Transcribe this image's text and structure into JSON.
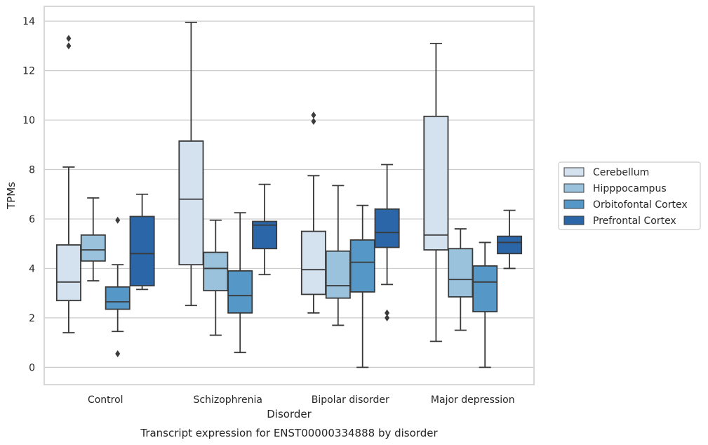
{
  "caption": "Transcript expression for ENST00000334888 by disorder",
  "chart_data": {
    "type": "boxplot",
    "xlabel": "Disorder",
    "ylabel": "TPMs",
    "ylim": [
      -0.7,
      14.6
    ],
    "yticks": [
      0,
      2,
      4,
      6,
      8,
      10,
      12,
      14
    ],
    "grid": "horizontal",
    "legend_position": "right",
    "categories": [
      "Control",
      "Schizophrenia",
      "Bipolar disorder",
      "Major depression"
    ],
    "series": [
      {
        "name": "Cerebellum",
        "color": "#d4e2f0",
        "boxes": [
          {
            "whisker_low": 1.4,
            "q1": 2.7,
            "median": 3.45,
            "q3": 4.95,
            "whisker_high": 8.1,
            "outliers": [
              13.0,
              13.3
            ]
          },
          {
            "whisker_low": 2.5,
            "q1": 4.15,
            "median": 6.8,
            "q3": 9.15,
            "whisker_high": 13.95,
            "outliers": []
          },
          {
            "whisker_low": 2.2,
            "q1": 2.95,
            "median": 3.95,
            "q3": 5.5,
            "whisker_high": 7.75,
            "outliers": [
              9.95,
              10.2
            ]
          },
          {
            "whisker_low": 1.05,
            "q1": 4.75,
            "median": 5.35,
            "q3": 10.15,
            "whisker_high": 13.1,
            "outliers": []
          }
        ]
      },
      {
        "name": "Hipppocampus",
        "color": "#9ac2dc",
        "boxes": [
          {
            "whisker_low": 3.5,
            "q1": 4.3,
            "median": 4.75,
            "q3": 5.35,
            "whisker_high": 6.85,
            "outliers": []
          },
          {
            "whisker_low": 1.3,
            "q1": 3.1,
            "median": 4.0,
            "q3": 4.65,
            "whisker_high": 5.95,
            "outliers": []
          },
          {
            "whisker_low": 1.7,
            "q1": 2.8,
            "median": 3.3,
            "q3": 4.7,
            "whisker_high": 7.35,
            "outliers": []
          },
          {
            "whisker_low": 1.5,
            "q1": 2.85,
            "median": 3.55,
            "q3": 4.8,
            "whisker_high": 5.6,
            "outliers": []
          }
        ]
      },
      {
        "name": "Orbitofontal Cortex",
        "color": "#5597c6",
        "boxes": [
          {
            "whisker_low": 1.45,
            "q1": 2.35,
            "median": 2.65,
            "q3": 3.25,
            "whisker_high": 4.15,
            "outliers": [
              0.55,
              5.95
            ]
          },
          {
            "whisker_low": 0.6,
            "q1": 2.2,
            "median": 2.9,
            "q3": 3.9,
            "whisker_high": 6.25,
            "outliers": []
          },
          {
            "whisker_low": 0.0,
            "q1": 3.05,
            "median": 4.25,
            "q3": 5.15,
            "whisker_high": 6.55,
            "outliers": []
          },
          {
            "whisker_low": 0.0,
            "q1": 2.25,
            "median": 3.45,
            "q3": 4.1,
            "whisker_high": 5.05,
            "outliers": []
          }
        ]
      },
      {
        "name": "Prefrontal Cortex",
        "color": "#2a66a8",
        "boxes": [
          {
            "whisker_low": 3.15,
            "q1": 3.3,
            "median": 4.6,
            "q3": 6.1,
            "whisker_high": 7.0,
            "outliers": []
          },
          {
            "whisker_low": 3.75,
            "q1": 4.8,
            "median": 5.75,
            "q3": 5.9,
            "whisker_high": 7.4,
            "outliers": []
          },
          {
            "whisker_low": 3.35,
            "q1": 4.85,
            "median": 5.45,
            "q3": 6.4,
            "whisker_high": 8.2,
            "outliers": [
              2.0,
              2.2
            ]
          },
          {
            "whisker_low": 4.0,
            "q1": 4.6,
            "median": 5.05,
            "q3": 5.3,
            "whisker_high": 6.35,
            "outliers": []
          }
        ]
      }
    ]
  }
}
